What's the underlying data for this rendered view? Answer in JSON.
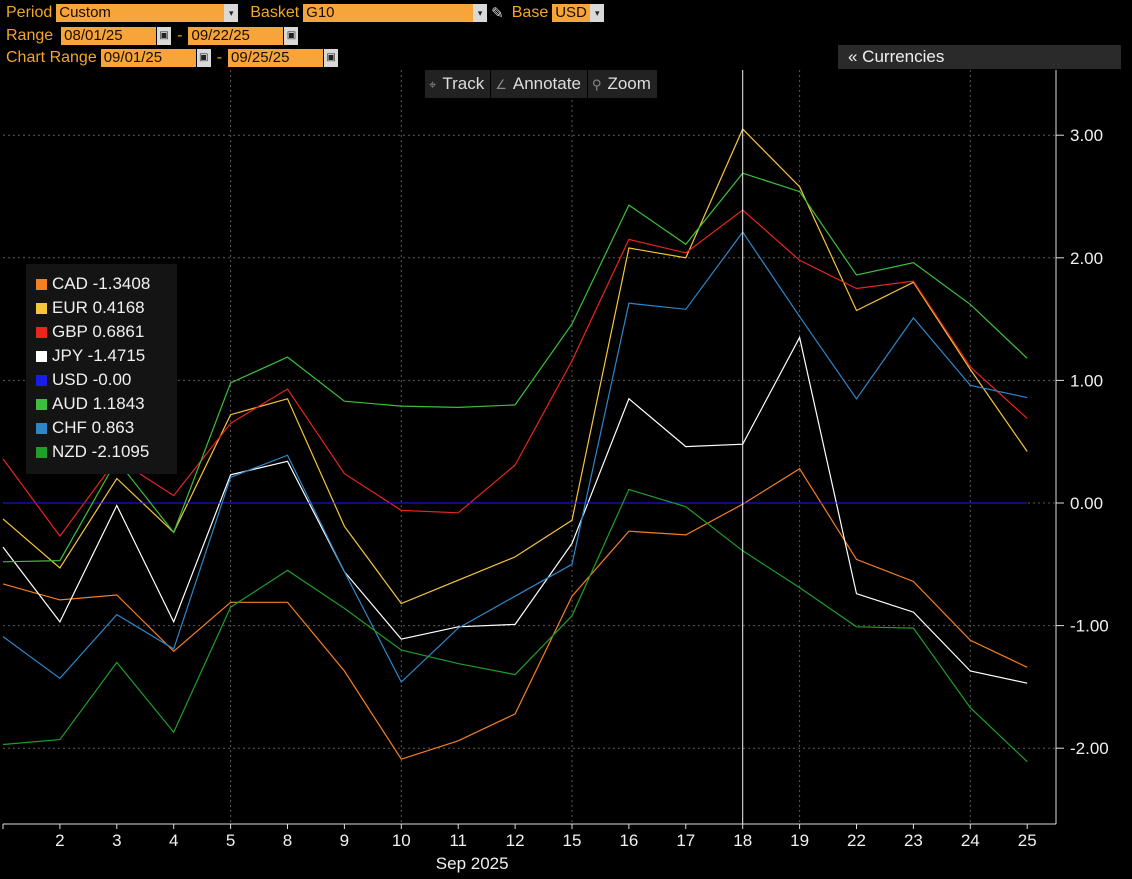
{
  "toolbar": {
    "period_label": "Period",
    "period_value": "Custom",
    "basket_label": "Basket",
    "basket_value": "G10",
    "base_label": "Base",
    "base_value": "USD",
    "range_label": "Range",
    "range_start": "08/01/25",
    "range_end": "09/22/25",
    "chart_range_label": "Chart Range",
    "chart_range_start": "09/01/25",
    "chart_range_end": "09/25/25",
    "dash": "-",
    "currencies_button": "«  Currencies",
    "track_label": "Track",
    "annotate_label": "Annotate",
    "zoom_label": "Zoom"
  },
  "icons": {
    "dropdown": "▾",
    "calendar": "▣",
    "pencil": "✎",
    "track": "⌖",
    "annotate": "∠",
    "zoom": "⚲"
  },
  "chart_data": {
    "type": "line",
    "title": "",
    "xlabel": "Sep 2025",
    "ylabel": "",
    "categories": [
      "1",
      "2",
      "3",
      "4",
      "5",
      "8",
      "9",
      "10",
      "11",
      "12",
      "15",
      "16",
      "17",
      "18",
      "19",
      "22",
      "23",
      "24",
      "25"
    ],
    "x_tick_labels": [
      "2",
      "3",
      "4",
      "5",
      "8",
      "9",
      "10",
      "11",
      "12",
      "15",
      "16",
      "17",
      "18",
      "19",
      "22",
      "23",
      "24",
      "25"
    ],
    "ylim": [
      -2.6,
      3.5
    ],
    "y_ticks": [
      3.0,
      2.0,
      1.0,
      0.0,
      -1.0,
      -2.0
    ],
    "y_tick_labels": [
      "3.00",
      "2.00",
      "1.00",
      "0.00",
      "-1.00",
      "-2.00"
    ],
    "grid": true,
    "crosshair_category": "18",
    "legend_position": "left",
    "series": [
      {
        "name": "CAD",
        "legend_value": "-1.3408",
        "color": "#f57f20",
        "values": [
          -0.66,
          -0.79,
          -0.75,
          -1.21,
          -0.81,
          -0.81,
          -1.37,
          -2.09,
          -1.94,
          -1.72,
          -0.76,
          -0.23,
          -0.26,
          -0.01,
          0.28,
          -0.46,
          -0.64,
          -1.12,
          -1.34
        ]
      },
      {
        "name": "EUR",
        "legend_value": "0.4168",
        "color": "#f5c63a",
        "values": [
          -0.13,
          -0.53,
          0.2,
          -0.24,
          0.72,
          0.85,
          -0.19,
          -0.82,
          -0.63,
          -0.44,
          -0.14,
          2.08,
          2.0,
          3.05,
          2.58,
          1.57,
          1.8,
          1.09,
          0.42
        ]
      },
      {
        "name": "GBP",
        "legend_value": "0.6861",
        "color": "#e8251e",
        "values": [
          0.36,
          -0.27,
          0.36,
          0.06,
          0.65,
          0.93,
          0.24,
          -0.06,
          -0.08,
          0.31,
          1.16,
          2.15,
          2.04,
          2.39,
          1.98,
          1.75,
          1.81,
          1.11,
          0.69
        ]
      },
      {
        "name": "JPY",
        "legend_value": "-1.4715",
        "color": "#ffffff",
        "values": [
          -0.36,
          -0.97,
          -0.02,
          -0.97,
          0.23,
          0.34,
          -0.56,
          -1.11,
          -1.01,
          -0.99,
          -0.33,
          0.85,
          0.46,
          0.48,
          1.35,
          -0.74,
          -0.89,
          -1.37,
          -1.47
        ]
      },
      {
        "name": "USD",
        "legend_value": "-0.00",
        "color": "#1b1bea",
        "values": [
          0.0,
          0.0,
          0.0,
          0.0,
          0.0,
          0.0,
          0.0,
          0.0,
          0.0,
          0.0,
          0.0,
          0.0,
          0.0,
          0.0,
          0.0,
          0.0,
          0.0,
          0.0,
          0.0
        ]
      },
      {
        "name": "AUD",
        "legend_value": "1.1843",
        "color": "#3cbf3c",
        "values": [
          -0.48,
          -0.47,
          0.35,
          -0.24,
          0.98,
          1.19,
          0.83,
          0.79,
          0.78,
          0.8,
          1.46,
          2.43,
          2.11,
          2.69,
          2.54,
          1.86,
          1.96,
          1.62,
          1.18
        ]
      },
      {
        "name": "CHF",
        "legend_value": "0.863",
        "color": "#2e86c8",
        "values": [
          -1.09,
          -1.43,
          -0.91,
          -1.19,
          0.21,
          0.39,
          -0.56,
          -1.46,
          -1.02,
          -0.76,
          -0.5,
          1.63,
          1.58,
          2.21,
          1.52,
          0.85,
          1.51,
          0.96,
          0.86
        ]
      },
      {
        "name": "NZD",
        "legend_value": "-2.1095",
        "color": "#1e9e2a",
        "values": [
          -1.97,
          -1.93,
          -1.3,
          -1.87,
          -0.85,
          -0.55,
          -0.86,
          -1.2,
          -1.31,
          -1.4,
          -0.92,
          0.11,
          -0.03,
          -0.39,
          -0.69,
          -1.01,
          -1.02,
          -1.67,
          -2.11
        ]
      }
    ]
  }
}
